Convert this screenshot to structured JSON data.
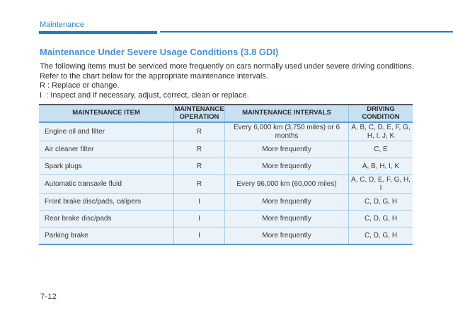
{
  "header": {
    "section_label": "Maintenance"
  },
  "main": {
    "title": "Maintenance Under Severe Usage Conditions (3.8 GDI)",
    "intro": "The following items must be serviced more frequently on cars normally used under severe driving conditions. Refer to the chart below for the appropriate maintenance intervals.",
    "legend": {
      "r_line": "R : Replace or change.",
      "i_line": "I  : Inspect and if necessary, adjust, correct, clean or replace."
    }
  },
  "table": {
    "columns": [
      "MAINTENANCE ITEM",
      "MAINTENANCE OPERATION",
      "MAINTENANCE INTERVALS",
      "DRIVING CONDITION"
    ],
    "rows": [
      {
        "item": "Engine oil and filter",
        "operation": "R",
        "interval": "Every 6,000 km (3,750 miles) or 6 months",
        "condition": "A, B, C, D, E, F, G, H, I, J, K"
      },
      {
        "item": "Air cleaner filter",
        "operation": "R",
        "interval": "More frequently",
        "condition": "C, E"
      },
      {
        "item": "Spark plugs",
        "operation": "R",
        "interval": "More frequently",
        "condition": "A, B, H, I, K"
      },
      {
        "item": "Automatic transaxle fluid",
        "operation": "R",
        "interval": "Every 96,000 km (60,000 miles)",
        "condition": "A, C, D, E, F, G, H, I"
      },
      {
        "item": "Front brake disc/pads, calipers",
        "operation": "I",
        "interval": "More frequently",
        "condition": "C, D, G, H"
      },
      {
        "item": "Rear brake disc/pads",
        "operation": "I",
        "interval": "More frequently",
        "condition": "C, D, G, H"
      },
      {
        "item": "Parking brake",
        "operation": "I",
        "interval": "More frequently",
        "condition": "C, D, G, H"
      }
    ]
  },
  "footer": {
    "page_number": "7-12"
  },
  "colors": {
    "accent_blue": "#1e7dc6",
    "title_blue": "#4590d3",
    "header_label_blue": "#2f83c5",
    "table_header_bg": "#c7e0f2",
    "table_row_bg": "#ebf3fa",
    "table_grid": "#a5cbe8",
    "table_rule_blue": "#5b9cd2",
    "table_top_border": "#55565a",
    "body_text": "#2d2d2d"
  }
}
